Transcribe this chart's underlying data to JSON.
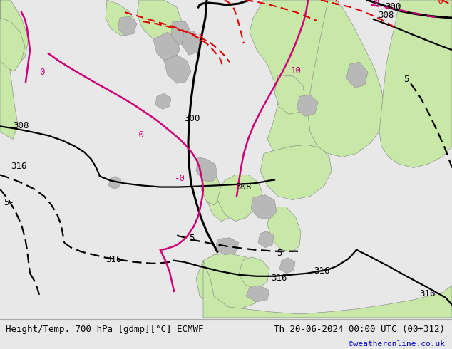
{
  "title_left": "Height/Temp. 700 hPa [gdmp][°C] ECMWF",
  "title_right": "Th 20-06-2024 00:00 UTC (00+312)",
  "credit": "©weatheronline.co.uk",
  "bg_color": "#e8e8e8",
  "land_green": "#c8e8a8",
  "land_gray": "#b8b8b8",
  "sea_color": "#e8e8e8",
  "contour_black_color": "#000000",
  "contour_red_color": "#dd0000",
  "contour_pink_color": "#cc0077",
  "figsize": [
    6.34,
    4.9
  ],
  "dpi": 100,
  "bottom_bar_color": "#f0f0f0",
  "credit_color": "#0000cc",
  "border_color": "#808080"
}
